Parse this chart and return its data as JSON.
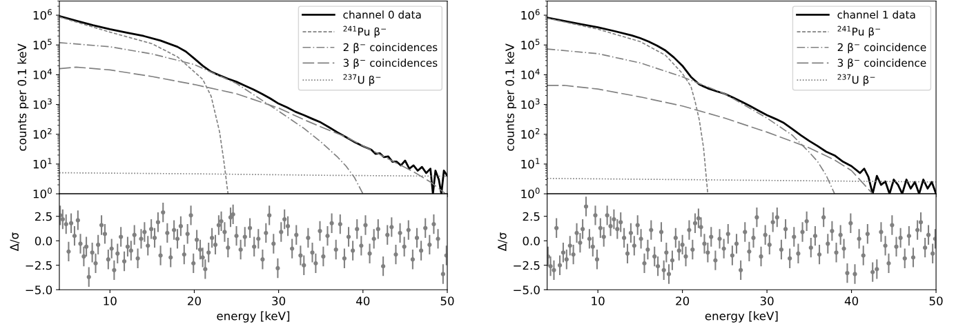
{
  "chart_data": [
    {
      "type": "line",
      "ylabel": "counts per 0.1 keV",
      "log": "y",
      "xlim": [
        4,
        50
      ],
      "ylim": [
        1,
        3000000
      ],
      "tick_labels": "y",
      "grid": false,
      "legend": "top right",
      "marker": "none",
      "yticks": [
        {
          "value": 1,
          "label": "10$^{0}$"
        },
        {
          "value": 10,
          "label": "10$^{1}$"
        },
        {
          "value": 100,
          "label": "10$^{2}$"
        },
        {
          "value": 1000,
          "label": "10$^{3}$"
        },
        {
          "value": 10000,
          "label": "10$^{4}$"
        },
        {
          "value": 100000,
          "label": "10$^{5}$"
        },
        {
          "value": 1000000,
          "label": "10$^{6}$"
        }
      ],
      "series": [
        {
          "name": "channel 0 data",
          "color": "#000000",
          "line_style": "solid",
          "x": [
            4,
            6,
            8,
            10,
            12,
            14,
            16,
            18,
            19,
            20,
            21,
            22,
            23,
            24,
            25,
            26,
            27,
            28,
            29,
            30,
            31,
            32,
            33,
            34,
            35,
            36,
            37,
            38,
            39,
            40,
            41,
            41.5,
            42,
            42.5,
            43,
            43.5,
            44,
            44.5,
            45,
            45.5,
            46,
            46.5,
            47,
            47.5,
            48,
            48.3,
            48.6,
            49,
            49.3,
            49.6,
            50
          ],
          "values": [
            930000,
            650000,
            460000,
            340000,
            260000,
            200000,
            140000,
            87000,
            60000,
            35000,
            20000,
            12600,
            9500,
            7300,
            5800,
            4300,
            3200,
            2300,
            1600,
            1070,
            800,
            570,
            440,
            330,
            250,
            170,
            115,
            80,
            55,
            40,
            30,
            22,
            23,
            17,
            18,
            12,
            12,
            9,
            13,
            7,
            9,
            6,
            8,
            5,
            7,
            1,
            6,
            3,
            1,
            6,
            4
          ]
        },
        {
          "name": "$^{241}$Pu β$^{−}$",
          "color": "#808080",
          "line_style": "dashed",
          "x": [
            4,
            10,
            15,
            18,
            20,
            21,
            22,
            23,
            23.5,
            24
          ],
          "values": [
            870000,
            270000,
            110000,
            40000,
            12600,
            7000,
            1900,
            120,
            13,
            1
          ]
        },
        {
          "name": "2 β$^{−}$ coincidences",
          "color": "#808080",
          "line_style": "dashdot",
          "x": [
            4,
            10,
            15,
            20,
            25,
            30,
            33,
            35,
            37,
            38,
            39,
            40
          ],
          "values": [
            120000,
            87000,
            50000,
            22000,
            5100,
            600,
            158,
            56,
            17,
            8.5,
            3.5,
            1
          ]
        },
        {
          "name": "3 β$^{−}$ coincidences",
          "color": "#808080",
          "line_style": "longdash",
          "x": [
            4,
            6,
            10,
            15,
            20,
            25,
            30,
            33,
            35,
            38,
            40,
            44,
            46,
            48,
            49.8
          ],
          "values": [
            16000,
            18000,
            14500,
            8700,
            4700,
            2300,
            760,
            310,
            178,
            81,
            41,
            10.7,
            5.5,
            2.5,
            1
          ]
        },
        {
          "name": "$^{237}$U β$^{−}$",
          "color": "#808080",
          "line_style": "dotted",
          "x": [
            4,
            20,
            35,
            50
          ],
          "values": [
            5.1,
            4.7,
            4.2,
            3.9
          ]
        }
      ]
    },
    {
      "type": "scatter",
      "xlabel": "energy [keV]",
      "ylabel": "Δ/σ",
      "xlim": [
        4,
        50
      ],
      "ylim": [
        -5,
        4.8
      ],
      "xticks": [
        10,
        20,
        30,
        40,
        50
      ],
      "grid": false,
      "marker": "circle",
      "yticks": [
        {
          "value": -5,
          "label": "−5.0"
        },
        {
          "value": -2.5,
          "label": "−2.5"
        },
        {
          "value": 0,
          "label": "0.0"
        },
        {
          "value": 2.5,
          "label": "2.5"
        }
      ],
      "series": [
        {
          "color": "#808080",
          "x": [
            4.1,
            4.4,
            4.8,
            5.1,
            5.4,
            5.8,
            6.2,
            6.5,
            6.9,
            7.2,
            7.5,
            7.9,
            8.3,
            8.6,
            9.0,
            9.4,
            9.8,
            10.2,
            10.5,
            10.9,
            11.3,
            11.7,
            12.1,
            12.5,
            12.9,
            13.3,
            13.7,
            14.1,
            14.5,
            14.9,
            15.3,
            15.7,
            16.0,
            16.3,
            16.8,
            17.2,
            17.6,
            18.0,
            18.4,
            18.8,
            19.2,
            19.6,
            19.9,
            20.3,
            20.7,
            21.0,
            21.3,
            21.7,
            22.1,
            22.5,
            22.9,
            23.2,
            23.6,
            24.0,
            24.3,
            24.6,
            25.0,
            25.5,
            26.0,
            26.6,
            27.1,
            27.6,
            28.1,
            28.5,
            28.9,
            29.4,
            29.9,
            30.3,
            30.7,
            31.1,
            31.6,
            32.1,
            32.6,
            33.0,
            33.5,
            34.0,
            34.4,
            34.9,
            35.3,
            35.8,
            36.3,
            36.8,
            37.3,
            37.8,
            38.3,
            38.8,
            39.3,
            39.8,
            40.3,
            40.8,
            41.3,
            41.8,
            42.4,
            42.9,
            43.4,
            43.9,
            44.4,
            44.9,
            45.4,
            45.9,
            46.4,
            46.9,
            47.4,
            47.9,
            48.4,
            48.9,
            49.5,
            49.9
          ],
          "values": [
            2.6,
            2.2,
            1.7,
            -1.1,
            1.8,
            0.5,
            2.1,
            -0.3,
            -1.6,
            -0.6,
            -3.7,
            -1.2,
            -2.3,
            -0.4,
            1.6,
            0.7,
            -1.9,
            -0.8,
            -3.0,
            -1.3,
            0.4,
            -2.1,
            -0.6,
            -1.0,
            0.6,
            -1.8,
            0.2,
            0.9,
            -0.5,
            1.2,
            0.3,
            1.9,
            -1.5,
            2.9,
            0.8,
            -1.7,
            1.1,
            0.2,
            1.5,
            -1.4,
            0.7,
            2.6,
            -2.3,
            0.1,
            -0.9,
            -1.7,
            -2.9,
            -1.2,
            0.3,
            -0.4,
            1.6,
            2.0,
            0.9,
            -0.7,
            2.4,
            2.7,
            0.5,
            -0.9,
            0.4,
            1.3,
            -0.6,
            0.2,
            -1.9,
            0.8,
            2.6,
            -0.3,
            -2.8,
            0.9,
            2.2,
            1.5,
            -0.8,
            0.6,
            -1.5,
            -2.5,
            0.3,
            -1.2,
            -2.3,
            1.0,
            -1.6,
            0.5,
            1.8,
            -0.9,
            1.7,
            -1.8,
            0.4,
            -1.0,
            1.2,
            -0.5,
            1.6,
            -1.3,
            0.2,
            1.2,
            -2.6,
            0.6,
            1.4,
            -1.4,
            0.8,
            -0.6,
            1.1,
            -1.9,
            0.3,
            -1.0,
            1.3,
            -0.4,
            1.7,
            0.2,
            -3.4,
            -1.5
          ],
          "errors": [
            1,
            1,
            1,
            1,
            1,
            1,
            1,
            1,
            1,
            1,
            1,
            1,
            1,
            1,
            1,
            1,
            1,
            1,
            1,
            1,
            1,
            1,
            1,
            1,
            1,
            1,
            1,
            1,
            1,
            1,
            1,
            1,
            1,
            1,
            1,
            1,
            1,
            1,
            1,
            1,
            1,
            1,
            1,
            1,
            1,
            1,
            1,
            1,
            1,
            1,
            1,
            1,
            1,
            1,
            1,
            1,
            1,
            1,
            1,
            1,
            1,
            1,
            1,
            1,
            1,
            1,
            1,
            1,
            1,
            1,
            1,
            1,
            1,
            1,
            1,
            1,
            1,
            1,
            1,
            1,
            1,
            1,
            1,
            1,
            1,
            1,
            1,
            1,
            1,
            1,
            1,
            1,
            1,
            1,
            1,
            1,
            1,
            1,
            1,
            1,
            1,
            1,
            1,
            1,
            1,
            1,
            1,
            1
          ]
        }
      ]
    },
    {
      "type": "line",
      "ylabel": "counts per 0.1 keV",
      "log": "y",
      "xlim": [
        4,
        50
      ],
      "ylim": [
        1,
        3000000
      ],
      "tick_labels": "y",
      "grid": false,
      "legend": "top right",
      "marker": "none",
      "yticks": [
        {
          "value": 1,
          "label": "10$^{0}$"
        },
        {
          "value": 10,
          "label": "10$^{1}$"
        },
        {
          "value": 100,
          "label": "10$^{2}$"
        },
        {
          "value": 1000,
          "label": "10$^{3}$"
        },
        {
          "value": 10000,
          "label": "10$^{4}$"
        },
        {
          "value": 100000,
          "label": "10$^{5}$"
        },
        {
          "value": 1000000,
          "label": "10$^{6}$"
        }
      ],
      "series": [
        {
          "name": "channel 1 data",
          "color": "#000000",
          "line_style": "solid",
          "x": [
            4,
            6,
            8,
            10,
            12,
            14,
            15,
            16,
            17,
            18,
            19,
            20,
            21,
            22,
            23,
            24,
            25,
            26,
            27,
            28,
            29,
            30,
            31,
            32,
            33,
            34,
            35,
            36,
            37,
            38,
            39,
            40,
            41,
            41.5,
            42,
            42.5,
            43,
            43.5,
            44,
            44.5,
            45,
            45.5,
            46,
            46.5,
            47,
            47.5,
            48,
            48.5,
            49,
            49.5,
            50
          ],
          "values": [
            830000,
            640000,
            500000,
            390000,
            290000,
            210000,
            170000,
            130000,
            95000,
            65000,
            38000,
            20000,
            8500,
            4700,
            3500,
            2800,
            2300,
            1700,
            1250,
            890,
            620,
            440,
            330,
            240,
            150,
            93,
            60,
            40,
            26,
            19.5,
            12,
            8.5,
            5,
            7,
            3.7,
            1,
            4,
            2,
            2.6,
            1,
            3,
            2,
            1,
            3,
            1.5,
            2.5,
            1,
            3,
            1.5,
            2.5,
            1
          ]
        },
        {
          "name": "$^{241}$Pu β$^{−}$",
          "color": "#808080",
          "line_style": "dashed",
          "x": [
            4,
            10,
            15,
            18,
            20,
            21,
            21.5,
            22,
            22.5,
            23
          ],
          "values": [
            790000,
            340000,
            130000,
            45000,
            11000,
            4100,
            1260,
            300,
            35,
            1
          ]
        },
        {
          "name": "2 β$^{−}$ coincidence",
          "color": "#808080",
          "line_style": "dashdot",
          "x": [
            4,
            10,
            15,
            20,
            25,
            30,
            33,
            35,
            36,
            37,
            38
          ],
          "values": [
            73000,
            51000,
            25000,
            8500,
            2300,
            350,
            93,
            25,
            12,
            4.2,
            1
          ]
        },
        {
          "name": "3 β$^{−}$ coincidence",
          "color": "#808080",
          "line_style": "longdash",
          "x": [
            4,
            6,
            10,
            15,
            20,
            25,
            30,
            35,
            38,
            40,
            42.5
          ],
          "values": [
            4400,
            4400,
            3300,
            1800,
            890,
            350,
            118,
            35,
            13.7,
            6,
            1
          ]
        },
        {
          "name": "$^{237}$U β$^{−}$",
          "color": "#808080",
          "line_style": "dotted",
          "x": [
            4,
            50
          ],
          "values": [
            3.3,
            2.5
          ]
        }
      ]
    },
    {
      "type": "scatter",
      "xlabel": "energy [keV]",
      "ylabel": "Δ/σ",
      "xlim": [
        4,
        50
      ],
      "ylim": [
        -5,
        4.8
      ],
      "xticks": [
        10,
        20,
        30,
        40,
        50
      ],
      "grid": false,
      "marker": "circle",
      "yticks": [
        {
          "value": -5,
          "label": "−5.0"
        },
        {
          "value": -2.5,
          "label": "−2.5"
        },
        {
          "value": 0,
          "label": "0.0"
        },
        {
          "value": 2.5,
          "label": "2.5"
        }
      ],
      "series": [
        {
          "color": "#808080",
          "x": [
            4.1,
            4.4,
            4.8,
            5.1,
            5.5,
            5.9,
            6.3,
            6.7,
            7.1,
            7.5,
            7.9,
            8.2,
            8.6,
            9.0,
            9.4,
            9.7,
            9.9,
            10.3,
            10.7,
            11.1,
            11.5,
            11.9,
            12.3,
            12.7,
            13.1,
            13.5,
            13.9,
            14.3,
            14.7,
            15.1,
            15.5,
            15.9,
            16.3,
            16.7,
            17.1,
            17.5,
            17.8,
            18.1,
            18.4,
            18.8,
            19.2,
            19.6,
            20.0,
            20.4,
            20.8,
            21.2,
            21.5,
            21.9,
            22.2,
            22.6,
            23.0,
            23.4,
            23.9,
            24.4,
            24.9,
            25.4,
            25.9,
            26.4,
            26.9,
            27.4,
            27.9,
            28.4,
            28.8,
            29.3,
            29.8,
            30.3,
            30.7,
            31.2,
            31.7,
            32.2,
            32.7,
            33.2,
            33.7,
            34.2,
            34.7,
            35.2,
            35.7,
            36.2,
            36.7,
            37.2,
            37.7,
            38.2,
            38.7,
            39.1,
            39.5,
            39.9,
            40.4,
            40.9,
            41.4,
            41.9,
            42.5,
            43.0,
            43.5,
            44.0,
            44.4,
            44.8,
            45.3,
            45.8,
            46.3,
            46.8,
            47.3,
            47.8,
            48.2,
            48.7,
            49.1,
            49.6,
            49.9
          ],
          "values": [
            -1.6,
            -2.6,
            -3.0,
            1.3,
            -2.5,
            -1.2,
            -1.9,
            -0.5,
            -1.4,
            0.8,
            -0.2,
            1.2,
            3.5,
            0.2,
            -0.6,
            2.6,
            -1.9,
            1.3,
            0.4,
            2.6,
            1.5,
            2.2,
            1.2,
            1.9,
            0.3,
            -1.3,
            0.8,
            -0.5,
            1.6,
            0.2,
            -2.3,
            -0.9,
            1.1,
            -1.6,
            -2.6,
            0.9,
            -3.0,
            -1.2,
            -3.4,
            -2.0,
            0.3,
            -1.0,
            -0.4,
            -1.6,
            1.1,
            -0.9,
            1.8,
            2.3,
            1.4,
            -0.3,
            -1.2,
            0.4,
            -2.0,
            0.2,
            -0.8,
            0.7,
            -1.5,
            -0.3,
            -3.0,
            0.9,
            -1.1,
            0.3,
            2.4,
            -1.6,
            0.6,
            -0.4,
            1.9,
            2.4,
            -0.9,
            1.2,
            -1.8,
            0.4,
            -1.3,
            0.9,
            2.0,
            -0.7,
            0.5,
            -1.4,
            2.4,
            -0.3,
            1.0,
            -1.2,
            0.6,
            -0.8,
            -3.3,
            1.8,
            -3.4,
            0.2,
            -1.5,
            0.7,
            -3.2,
            -2.9,
            0.9,
            -0.5,
            -2.3,
            1.6,
            -0.6,
            0.3,
            -1.8,
            0.5,
            -1.7,
            1.1,
            1.9,
            -0.7,
            0.6,
            -1.3,
            0.2
          ],
          "errors": [
            1,
            1,
            1,
            1,
            1,
            1,
            1,
            1,
            1,
            1,
            1,
            1,
            1,
            1,
            1,
            1,
            1,
            1,
            1,
            1,
            1,
            1,
            1,
            1,
            1,
            1,
            1,
            1,
            1,
            1,
            1,
            1,
            1,
            1,
            1,
            1,
            1,
            1,
            1,
            1,
            1,
            1,
            1,
            1,
            1,
            1,
            1,
            1,
            1,
            1,
            1,
            1,
            1,
            1,
            1,
            1,
            1,
            1,
            1,
            1,
            1,
            1,
            1,
            1,
            1,
            1,
            1,
            1,
            1,
            1,
            1,
            1,
            1,
            1,
            1,
            1,
            1,
            1,
            1,
            1,
            1,
            1,
            1,
            1,
            1,
            1,
            1,
            1,
            1,
            1,
            1,
            1,
            1,
            1,
            1,
            1,
            1,
            1,
            1,
            1,
            1,
            1,
            1,
            1,
            1,
            1,
            1
          ]
        }
      ]
    }
  ]
}
